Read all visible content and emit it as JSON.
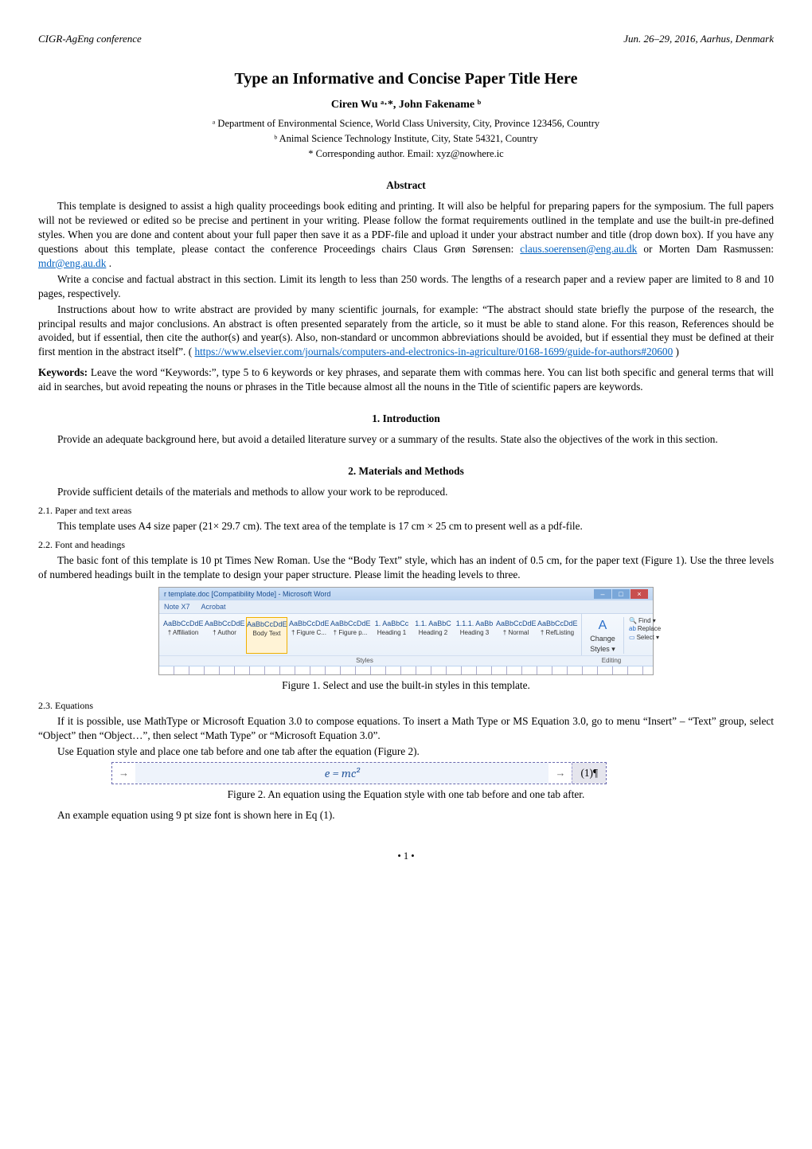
{
  "header": {
    "left": "CIGR-AgEng conference",
    "right": "Jun. 26–29, 2016, Aarhus, Denmark"
  },
  "title": "Type an Informative and Concise Paper Title Here",
  "authors_line": "Ciren Wu ᵃ·*, John Fakename ᵇ",
  "affiliations": {
    "a": "ᵃ Department of Environmental Science, World Class University, City, Province 123456, Country",
    "b": "ᵇ Animal Science Technology Institute, City, State 54321, Country",
    "corr": "* Corresponding author. Email: xyz@nowhere.ic"
  },
  "abstract": {
    "heading": "Abstract",
    "p1_a": "This template is designed to assist a high quality proceedings book editing and printing. It will also be helpful for preparing papers for the symposium. The full papers will not be reviewed or edited so be precise and pertinent in your writing. Please follow the format requirements outlined in the template and use the built-in pre-defined styles. When you are done and content about your full paper then save it as a PDF-file and upload it under your abstract number and title (drop down box). If you have any questions about this template, please contact the conference Proceedings chairs Claus Grøn Sørensen: ",
    "email1": "claus.soerensen@eng.au.dk",
    "p1_b": " or Morten Dam Rasmussen: ",
    "email2": "mdr@eng.au.dk",
    "p1_c": " .",
    "p2": "Write a concise and factual abstract in this section. Limit its length to less than 250 words. The lengths of a research paper and a review paper are limited to 8 and 10 pages, respectively.",
    "p3_a": "Instructions about how to write abstract are provided by many scientific journals, for example: “The abstract should state briefly the purpose of the research, the principal results and major conclusions. An abstract is often presented separately from the article, so it must be able to stand alone. For this reason, References should be avoided, but if essential, then cite the author(s) and year(s). Also, non-standard or uncommon abbreviations should be avoided, but if essential they must be defined at their first mention in the abstract itself”. (",
    "link": "https://www.elsevier.com/journals/computers-and-electronics-in-agriculture/0168-1699/guide-for-authors#20600",
    "p3_b": ")"
  },
  "keywords": {
    "label": "Keywords:",
    "text": " Leave the word “Keywords:”, type 5 to 6 keywords or key phrases, and separate them with commas here. You can list both specific and general terms that will aid in searches, but avoid repeating the nouns or phrases in the Title because almost all the nouns in the Title of scientific papers are keywords."
  },
  "intro": {
    "heading": "1. Introduction",
    "p": "Provide an adequate background here, but avoid a detailed literature survey or a summary of the results. State also the objectives of the work in this section."
  },
  "mm": {
    "heading": "2. Materials and Methods",
    "p": "Provide sufficient details of the materials and methods to allow your work to be reproduced.",
    "s21_h": "2.1. Paper and text areas",
    "s21_p": "This template uses A4 size paper (21× 29.7 cm). The text area of the template is 17 cm × 25 cm to present well as a pdf-file.",
    "s22_h": "2.2. Font and headings",
    "s22_p": "The basic font of this template is 10 pt Times New Roman. Use the “Body Text” style, which has an indent of 0.5 cm, for the paper text (Figure 1). Use the three levels of numbered headings built in the template to design your paper structure. Please limit the heading levels to three."
  },
  "fig1": {
    "caption": "Figure 1. Select and use the built-in styles in this template.",
    "ribbon": {
      "title": "r template.doc [Compatibility Mode] - Microsoft Word",
      "tabs": [
        "Note X7",
        "Acrobat"
      ],
      "styles": [
        {
          "sample": "AaBbCcDdE",
          "name": "† Affiliation",
          "sel": false
        },
        {
          "sample": "AaBbCcDdE",
          "name": "† Author",
          "sel": false
        },
        {
          "sample": "AaBbCcDdE",
          "name": "Body Text",
          "sel": true
        },
        {
          "sample": "AaBbCcDdE",
          "name": "† Figure C...",
          "sel": false
        },
        {
          "sample": "AaBbCcDdE",
          "name": "† Figure p...",
          "sel": false
        },
        {
          "sample": "1. AaBbCc",
          "name": "Heading 1",
          "sel": false
        },
        {
          "sample": "1.1. AaBbC",
          "name": "Heading 2",
          "sel": false
        },
        {
          "sample": "1.1.1. AaBb",
          "name": "Heading 3",
          "sel": false
        },
        {
          "sample": "AaBbCcDdE",
          "name": "† Normal",
          "sel": false
        },
        {
          "sample": "AaBbCcDdE",
          "name": "† RefListing",
          "sel": false
        }
      ],
      "change_styles": "Change Styles ▾",
      "editing": {
        "find": "Find ▾",
        "replace": "Replace",
        "select": "Select ▾"
      },
      "group_styles": "Styles",
      "group_editing": "Editing"
    }
  },
  "s23_h": "2.3. Equations",
  "s23_p1": "If it is possible, use MathType or Microsoft Equation 3.0 to compose equations. To insert a Math Type or MS Equation 3.0, go to menu “Insert” – “Text” group, select “Object” then “Object…”, then select “Math Type” or “Microsoft Equation 3.0”.",
  "s23_p2": "Use Equation style and place one tab before and one tab after the equation (Figure 2).",
  "fig2": {
    "eq": "e = mc²",
    "num": "(1)¶",
    "arrow": "→",
    "caption": "Figure 2. An equation using the Equation style with one tab before and one tab after."
  },
  "s23_p3": "An example equation using 9 pt size font is shown here in Eq (1).",
  "footer": "• 1 •",
  "colors": {
    "link": "#0563c1",
    "ribbon_title_bg": "#cde0f7",
    "ribbon_accent": "#1a4d8f",
    "ribbon_sel_border": "#f0b000",
    "close_btn": "#c84f4f"
  }
}
